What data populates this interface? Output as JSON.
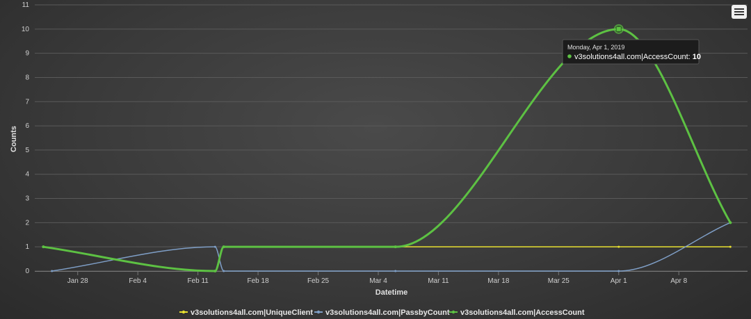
{
  "chart_data": {
    "type": "line",
    "xlabel": "Datetime",
    "ylabel": "Counts",
    "ylim": [
      0,
      11
    ],
    "y_ticks": [
      0,
      1,
      2,
      3,
      4,
      5,
      6,
      7,
      8,
      9,
      10,
      11
    ],
    "x_ticks": [
      {
        "date": "2019-01-28",
        "label": "Jan 28"
      },
      {
        "date": "2019-02-04",
        "label": "Feb 4"
      },
      {
        "date": "2019-02-11",
        "label": "Feb 11"
      },
      {
        "date": "2019-02-18",
        "label": "Feb 18"
      },
      {
        "date": "2019-02-25",
        "label": "Feb 25"
      },
      {
        "date": "2019-03-04",
        "label": "Mar 4"
      },
      {
        "date": "2019-03-11",
        "label": "Mar 11"
      },
      {
        "date": "2019-03-18",
        "label": "Mar 18"
      },
      {
        "date": "2019-03-25",
        "label": "Mar 25"
      },
      {
        "date": "2019-04-01",
        "label": "Apr 1"
      },
      {
        "date": "2019-04-08",
        "label": "Apr 8"
      }
    ],
    "xlim": [
      "2019-01-23",
      "2019-04-16"
    ],
    "grid": true,
    "legend_position": "bottom",
    "series": [
      {
        "name": "v3solutions4all.com|UniqueClient",
        "color": "#e8e030",
        "points": [
          [
            "2019-02-14",
            1
          ],
          [
            "2019-03-06",
            1
          ],
          [
            "2019-04-01",
            1
          ],
          [
            "2019-04-14",
            1
          ]
        ]
      },
      {
        "name": "v3solutions4all.com|PassbyCount",
        "color": "#7f9fc7",
        "points": [
          [
            "2019-01-25",
            0
          ],
          [
            "2019-02-13",
            1
          ],
          [
            "2019-02-14",
            0
          ],
          [
            "2019-03-06",
            0
          ],
          [
            "2019-04-01",
            0
          ],
          [
            "2019-04-14",
            2
          ]
        ]
      },
      {
        "name": "v3solutions4all.com|AccessCount",
        "color": "#5dc143",
        "points": [
          [
            "2019-01-24",
            1
          ],
          [
            "2019-02-13",
            0
          ],
          [
            "2019-02-14",
            1
          ],
          [
            "2019-03-06",
            1
          ],
          [
            "2019-04-01",
            10
          ],
          [
            "2019-04-14",
            2
          ]
        ]
      }
    ],
    "tooltip": {
      "date_label": "Monday, Apr 1, 2019",
      "series_label": "v3solutions4all.com|AccessCount:",
      "value": "10",
      "point_date": "2019-04-01",
      "point_value": 10
    }
  }
}
